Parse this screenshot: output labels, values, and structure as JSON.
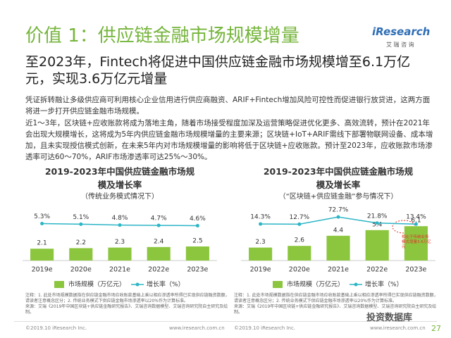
{
  "header": {
    "title": "价值 1：供应链金融市场规模增量",
    "logo": "iResearch",
    "logo_sub": "艾 瑞 咨 询"
  },
  "subtitle": "至2023年，Fintech将促进中国供应链金融市场规模增至6.1万亿元，实现3.6万亿元增量",
  "paragraphs": [
    "凭证拆转融让多级供应商可利用核心企业信用进行供应商融资、ARIF+Fintech增加风险可控性而促进银行放贷进，这两方面将进一步打开供应链金融市场规模。",
    "近1～3年，区块链+应收账款将成为落地主角，随着市场接受程度加深及运营策略促进优化更多、高效流转，预计在2021年会出现大规模增长，这将成为5年内供应链金融市场规模增量的主要来源；区块链+IoT+ARIF需线下部署物联网设备、成本增加，且未实现授信模式创新，在未来5年内对市场规模增量的影响将低于区块链+应收账款。预计至2023年，应收账款市场渗透率可达60～70%，ARIF市场渗透率可达25%～30%。"
  ],
  "chart_data": [
    {
      "type": "bar",
      "title": "2019-2023年中国供应链金融市场规模及增长率",
      "subtitle": "（传统业务模式情况下）",
      "categories": [
        "2019e",
        "2020e",
        "2021e",
        "2022e",
        "2023e"
      ],
      "series": [
        {
          "name": "市场规模（万亿元）",
          "color": "#8cc63e",
          "values": [
            2.1,
            2.2,
            2.3,
            2.4,
            2.5
          ]
        },
        {
          "name": "增长率（%）",
          "color": "#2cb5c6",
          "type": "line",
          "axis": "y2",
          "values": [
            5.3,
            5.1,
            4.8,
            4.7,
            4.6
          ],
          "value_labels": [
            "5.3%",
            "5.1%",
            "4.8%",
            "4.7%",
            "4.6%"
          ]
        }
      ],
      "ylim": [
        0,
        8
      ],
      "y2lim": [
        -7,
        8
      ]
    },
    {
      "type": "bar",
      "title": "2019-2023年中国供应链金融市场规模及增长率",
      "subtitle": "（“区块链+供应链金融”参与情况下）",
      "categories": [
        "2019e",
        "2020e",
        "2021e",
        "2022e",
        "2023e"
      ],
      "series": [
        {
          "name": "市场规模（万亿元）",
          "color": "#8cc63e",
          "values": [
            2.3,
            2.6,
            4.4,
            5.4,
            6.1
          ]
        },
        {
          "name": "增长率（%）",
          "color": "#2cb5c6",
          "type": "line",
          "axis": "y2",
          "values": [
            14.3,
            12.7,
            72.7,
            21.8,
            13.4
          ],
          "value_labels": [
            "14.3%",
            "12.7%",
            "72.7%",
            "21.8%",
            "13.4%"
          ]
        }
      ],
      "ylim": [
        0,
        8
      ],
      "y2lim": [
        -290,
        85
      ],
      "annotation": "相比于传统业务模式增量3.6万亿元"
    }
  ],
  "footnotes": [
    {
      "note": "注释：1. 此处市场规模数据指在供应链金融市场应收账款基础上乘以相应渗透率所得已实现供应链融资数额，请读者注意概念区分；2. 传统业务模式下供应链金融市场渗透率以20%作为计算标准。",
      "source": "来源：艾瑞《2019年中国区块链+供应链金融研究报告》、艾瑞咨询数据模型、艾瑞咨询研究院自主研究及绘制。"
    },
    {
      "note": "注释：1. 此处市场规模数据指在供应链金融市场应收账款基础上乘以相应渗透率所得已实现供应链融资数额，请读者注意概念区分；2. 传统业务模式下供应链金融市场渗透率以20%作为计算标准。",
      "source": "来源：艾瑞《2019年中国区块链+供应链金融研究报告》、艾瑞咨询数据模型、艾瑞咨询研究院自主研究及绘制。"
    }
  ],
  "footer": {
    "copyright": [
      "©2019.10 iResearch Inc.",
      "©2019.10 iResearch Inc."
    ],
    "url": [
      "www.iresearch.com.cn",
      "www.iresearch.com.cn"
    ],
    "watermark": "投资数据库",
    "page": "27"
  }
}
